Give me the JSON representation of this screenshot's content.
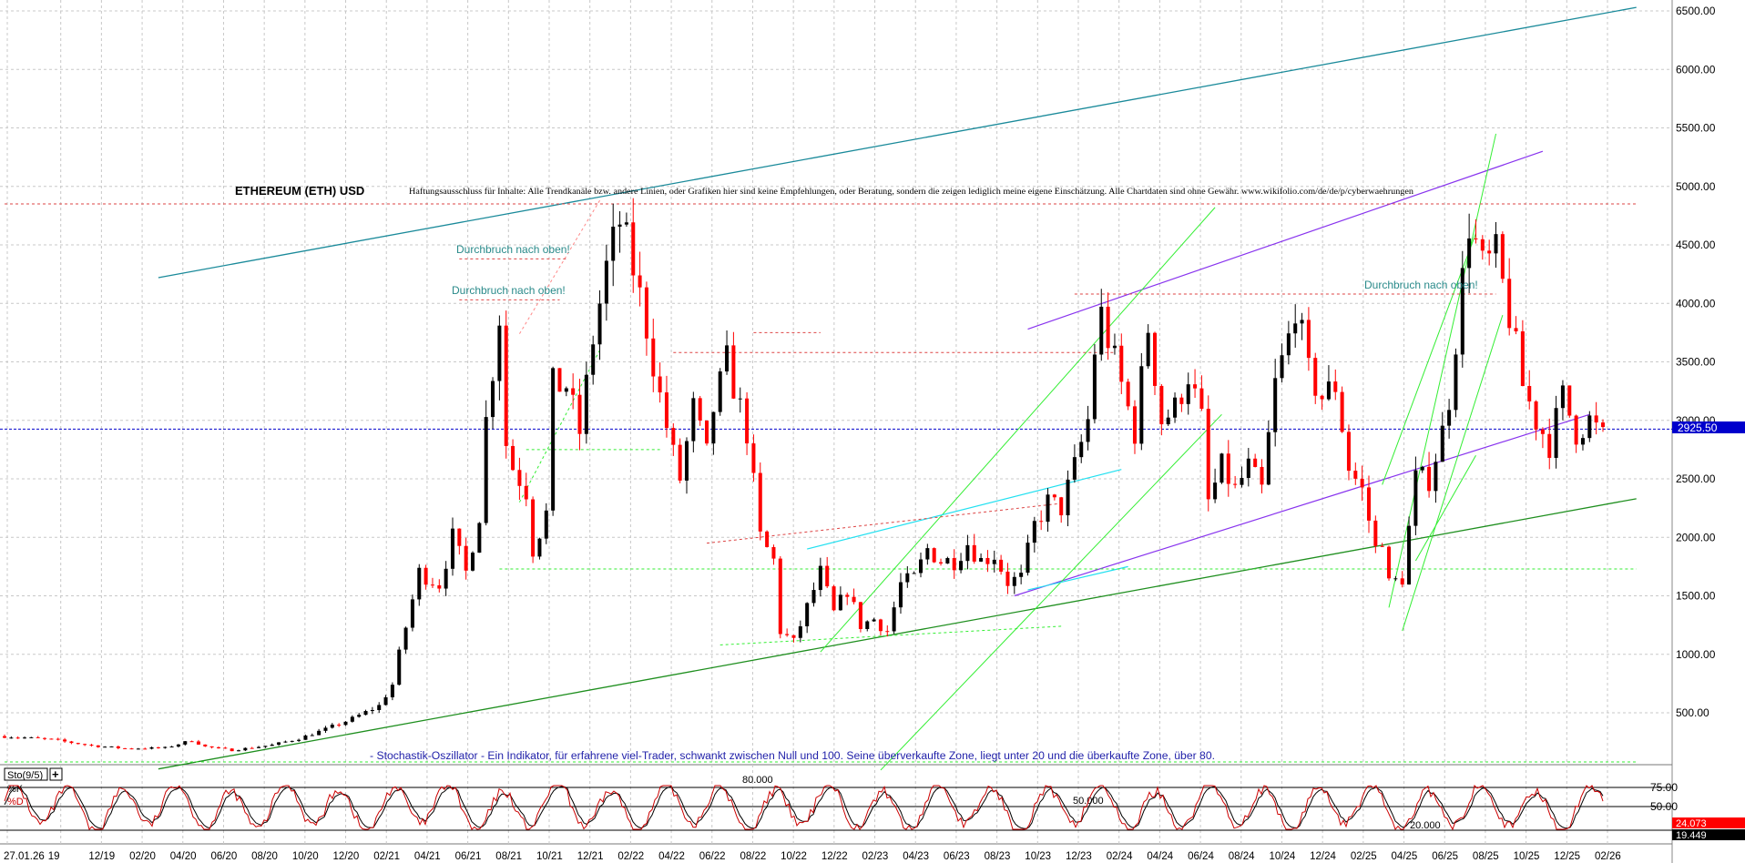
{
  "chart_data": {
    "type": "candlestick",
    "title": "ETHEREUM (ETH) USD",
    "disclaimer": "Haftungsausschluss für Inhalte: Alle Trendkanäle bzw. andere Linien, oder Grafiken hier sind keine Empfehlungen, oder Beratung, sondern die zeigen lediglich meine eigene Einschätzung. Alle Chartdaten sind ohne Gewähr.  www.wikifolio.com/de/de/p/cyberwaehrungen",
    "annotations": [
      "Durchbruch nach oben!",
      "Durchbruch nach oben!",
      "Durchbruch nach oben!"
    ],
    "oscillator_note": "- Stochastik-Oszillator - Ein Indikator, für erfahrene viel-Trader, schwankt zwischen Null und 100. Seine überverkaufte Zone, liegt unter 20 und die überkaufte Zone, über 80.",
    "y_ticks": [
      "6500.00",
      "6000.00",
      "5500.00",
      "5000.00",
      "4500.00",
      "4000.00",
      "3500.00",
      "3000.00",
      "2500.00",
      "2000.00",
      "1500.00",
      "1000.00",
      "500.00"
    ],
    "ylim": [
      0,
      6600
    ],
    "last_price": "2925.50",
    "x_ticks": [
      "27.01.26",
      "19",
      "12/19",
      "02/20",
      "04/20",
      "06/20",
      "08/20",
      "10/20",
      "12/20",
      "02/21",
      "04/21",
      "06/21",
      "08/21",
      "10/21",
      "12/21",
      "02/22",
      "04/22",
      "06/22",
      "08/22",
      "10/22",
      "12/22",
      "02/23",
      "04/23",
      "06/23",
      "08/23",
      "10/23",
      "12/23",
      "02/24",
      "04/24",
      "06/24",
      "08/24",
      "10/24",
      "12/24",
      "02/25",
      "04/25",
      "06/25",
      "08/25",
      "10/25",
      "12/25",
      "02/26"
    ],
    "price_path": [
      [
        0,
        300
      ],
      [
        7,
        270
      ],
      [
        13,
        220
      ],
      [
        18,
        195
      ],
      [
        24,
        200
      ],
      [
        28,
        265
      ],
      [
        30,
        210
      ],
      [
        34,
        180
      ],
      [
        40,
        225
      ],
      [
        44,
        280
      ],
      [
        48,
        360
      ],
      [
        52,
        450
      ],
      [
        56,
        560
      ],
      [
        58,
        740
      ],
      [
        59,
        1000
      ],
      [
        62,
        1700
      ],
      [
        65,
        1600
      ],
      [
        67,
        2000
      ],
      [
        69,
        1700
      ],
      [
        71,
        2200
      ],
      [
        72,
        3000
      ],
      [
        74,
        3900
      ],
      [
        75,
        2800
      ],
      [
        76,
        2600
      ],
      [
        78,
        2400
      ],
      [
        79,
        1900
      ],
      [
        81,
        2200
      ],
      [
        82,
        3300
      ],
      [
        84,
        3300
      ],
      [
        86,
        2900
      ],
      [
        88,
        3700
      ],
      [
        90,
        4300
      ],
      [
        92,
        4700
      ],
      [
        94,
        4300
      ],
      [
        96,
        3800
      ],
      [
        98,
        3200
      ],
      [
        100,
        2700
      ],
      [
        101,
        2500
      ],
      [
        103,
        3100
      ],
      [
        105,
        2700
      ],
      [
        106,
        3100
      ],
      [
        108,
        3500
      ],
      [
        111,
        2900
      ],
      [
        113,
        2000
      ],
      [
        115,
        1800
      ],
      [
        116,
        1200
      ],
      [
        118,
        1100
      ],
      [
        120,
        1400
      ],
      [
        122,
        1700
      ],
      [
        124,
        1350
      ],
      [
        126,
        1550
      ],
      [
        128,
        1250
      ],
      [
        130,
        1300
      ],
      [
        132,
        1200
      ],
      [
        134,
        1600
      ],
      [
        136,
        1650
      ],
      [
        138,
        1900
      ],
      [
        140,
        1800
      ],
      [
        142,
        1800
      ],
      [
        144,
        1950
      ],
      [
        146,
        1800
      ],
      [
        148,
        1850
      ],
      [
        150,
        1620
      ],
      [
        152,
        1650
      ],
      [
        154,
        2100
      ],
      [
        156,
        2300
      ],
      [
        158,
        2250
      ],
      [
        160,
        2600
      ],
      [
        162,
        3000
      ],
      [
        163,
        3600
      ],
      [
        164,
        3900
      ],
      [
        166,
        3500
      ],
      [
        168,
        3100
      ],
      [
        169,
        2900
      ],
      [
        171,
        3800
      ],
      [
        173,
        3000
      ],
      [
        175,
        3100
      ],
      [
        177,
        3400
      ],
      [
        179,
        3000
      ],
      [
        180,
        2300
      ],
      [
        182,
        2600
      ],
      [
        184,
        2400
      ],
      [
        186,
        2600
      ],
      [
        188,
        2400
      ],
      [
        190,
        3300
      ],
      [
        192,
        3700
      ],
      [
        193,
        4000
      ],
      [
        195,
        3400
      ],
      [
        197,
        3200
      ],
      [
        199,
        3300
      ],
      [
        201,
        2600
      ],
      [
        203,
        2400
      ],
      [
        205,
        1900
      ],
      [
        206,
        2000
      ],
      [
        207,
        1600
      ],
      [
        209,
        1650
      ],
      [
        211,
        2500
      ],
      [
        213,
        2500
      ],
      [
        215,
        2900
      ],
      [
        216,
        3200
      ],
      [
        217,
        3700
      ],
      [
        219,
        4700
      ],
      [
        221,
        4300
      ],
      [
        223,
        4400
      ],
      [
        225,
        3900
      ],
      [
        227,
        3300
      ],
      [
        229,
        3000
      ],
      [
        231,
        2800
      ],
      [
        233,
        3200
      ],
      [
        235,
        2900
      ],
      [
        237,
        3000
      ],
      [
        239,
        2850
      ]
    ]
  },
  "stochastic": {
    "label": "Sto(9/5)",
    "k_label": "%K",
    "d_label": "%D",
    "right_ticks": [
      "75.00",
      "50.00"
    ],
    "k_value": "24.073",
    "d_value": "19.449",
    "level_labels": [
      "80.000",
      "50.000",
      "20.000"
    ],
    "k_color": "#cc0000",
    "d_color": "#000000"
  },
  "colors": {
    "up": "#000000",
    "down": "#ff0000",
    "channel_teal": "#1a8a9a",
    "trend_green": "#1f8f1f",
    "light_green": "#33ee33",
    "purple": "#8833ee",
    "cyan": "#22e0f0",
    "price_line": "#0000cc"
  }
}
